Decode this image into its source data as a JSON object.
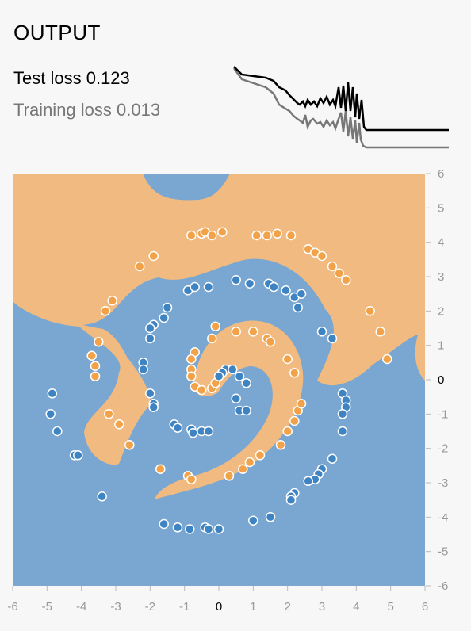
{
  "panel": {
    "title": "OUTPUT"
  },
  "loss": {
    "test_label": "Test loss",
    "test_value": "0.123",
    "training_label": "Training loss",
    "training_value": "0.013"
  },
  "colors": {
    "positive_region": "#f0ba80",
    "negative_region": "#79a7d1",
    "positive_point": "#f2a34a",
    "negative_point": "#3f84c2",
    "point_stroke": "#ffffff",
    "test_curve": "#000000",
    "training_curve": "#777777",
    "tick_text": "#999999"
  },
  "chart_data": {
    "type": "scatter",
    "title": "",
    "xlabel": "",
    "ylabel": "",
    "xlim": [
      -6,
      6
    ],
    "ylim": [
      -6,
      6
    ],
    "x_ticks": [
      "-6",
      "-5",
      "-4",
      "-3",
      "-2",
      "-1",
      "0",
      "1",
      "2",
      "3",
      "4",
      "5",
      "6"
    ],
    "y_ticks": [
      "6",
      "5",
      "4",
      "3",
      "2",
      "1",
      "0",
      "-1",
      "-2",
      "-3",
      "-4",
      "-5",
      "-6"
    ],
    "series": [
      {
        "class": "orange",
        "points": [
          [
            -0.8,
            4.2
          ],
          [
            -0.5,
            4.25
          ],
          [
            -0.4,
            4.3
          ],
          [
            -0.2,
            4.2
          ],
          [
            0.1,
            4.3
          ],
          [
            1.1,
            4.2
          ],
          [
            1.4,
            4.2
          ],
          [
            1.7,
            4.25
          ],
          [
            2.1,
            4.2
          ],
          [
            2.6,
            3.8
          ],
          [
            2.8,
            3.7
          ],
          [
            3.0,
            3.6
          ],
          [
            3.3,
            3.3
          ],
          [
            3.5,
            3.1
          ],
          [
            3.7,
            2.9
          ],
          [
            4.4,
            2.0
          ],
          [
            4.7,
            1.4
          ],
          [
            4.9,
            0.6
          ],
          [
            -1.9,
            3.6
          ],
          [
            -2.3,
            3.3
          ],
          [
            -3.1,
            2.3
          ],
          [
            -3.3,
            2.0
          ],
          [
            -3.5,
            1.1
          ],
          [
            -3.7,
            0.7
          ],
          [
            -3.6,
            0.4
          ],
          [
            -3.6,
            0.1
          ],
          [
            -3.2,
            -1.0
          ],
          [
            -2.9,
            -1.3
          ],
          [
            -2.6,
            -1.9
          ],
          [
            -1.7,
            -2.6
          ],
          [
            -0.9,
            -2.8
          ],
          [
            -0.8,
            -2.9
          ],
          [
            0.3,
            -2.8
          ],
          [
            0.7,
            -2.6
          ],
          [
            0.9,
            -2.4
          ],
          [
            1.2,
            -2.2
          ],
          [
            1.8,
            -1.9
          ],
          [
            2.0,
            -1.5
          ],
          [
            2.2,
            -1.2
          ],
          [
            2.3,
            -0.9
          ],
          [
            2.4,
            -0.7
          ],
          [
            2.0,
            0.6
          ],
          [
            2.2,
            0.2
          ],
          [
            1.4,
            1.2
          ],
          [
            1.5,
            1.1
          ],
          [
            1.0,
            1.4
          ],
          [
            0.5,
            1.4
          ],
          [
            -0.1,
            1.55
          ],
          [
            -0.2,
            1.2
          ],
          [
            -0.7,
            0.8
          ],
          [
            -0.8,
            0.6
          ],
          [
            -0.8,
            0.3
          ],
          [
            -0.8,
            0.1
          ],
          [
            -0.7,
            -0.2
          ],
          [
            -0.5,
            -0.3
          ],
          [
            -0.2,
            -0.25
          ],
          [
            -0.1,
            -0.1
          ]
        ]
      },
      {
        "class": "blue",
        "points": [
          [
            0.5,
            2.9
          ],
          [
            0.9,
            2.8
          ],
          [
            1.45,
            2.8
          ],
          [
            1.6,
            2.7
          ],
          [
            1.95,
            2.6
          ],
          [
            2.2,
            2.4
          ],
          [
            2.4,
            2.5
          ],
          [
            2.3,
            2.1
          ],
          [
            -0.9,
            2.6
          ],
          [
            -0.7,
            2.7
          ],
          [
            -0.3,
            2.7
          ],
          [
            -1.5,
            2.1
          ],
          [
            -1.6,
            1.8
          ],
          [
            -1.9,
            1.6
          ],
          [
            -2.0,
            1.5
          ],
          [
            -2.0,
            1.2
          ],
          [
            -2.2,
            0.5
          ],
          [
            -2.2,
            0.3
          ],
          [
            -2.0,
            -0.4
          ],
          [
            -1.9,
            -0.7
          ],
          [
            -1.9,
            -0.8
          ],
          [
            -1.3,
            -1.3
          ],
          [
            -1.2,
            -1.4
          ],
          [
            -0.8,
            -1.45
          ],
          [
            -0.75,
            -1.55
          ],
          [
            -0.5,
            -1.5
          ],
          [
            -0.3,
            -1.5
          ],
          [
            3.0,
            1.4
          ],
          [
            3.3,
            1.2
          ],
          [
            3.6,
            -0.4
          ],
          [
            3.7,
            -0.6
          ],
          [
            3.7,
            -0.8
          ],
          [
            3.6,
            -1.0
          ],
          [
            3.6,
            -1.5
          ],
          [
            3.3,
            -2.3
          ],
          [
            3.0,
            -2.6
          ],
          [
            2.9,
            -2.75
          ],
          [
            2.8,
            -2.9
          ],
          [
            2.6,
            -2.95
          ],
          [
            2.2,
            -3.3
          ],
          [
            2.1,
            -3.4
          ],
          [
            2.1,
            -3.5
          ],
          [
            1.5,
            -4.0
          ],
          [
            1.0,
            -4.1
          ],
          [
            -1.6,
            -4.2
          ],
          [
            -1.2,
            -4.3
          ],
          [
            -0.85,
            -4.35
          ],
          [
            -0.4,
            -4.3
          ],
          [
            -0.3,
            -4.35
          ],
          [
            0.0,
            -4.35
          ],
          [
            -3.4,
            -3.4
          ],
          [
            -4.2,
            -2.2
          ],
          [
            -4.1,
            -2.2
          ],
          [
            -4.7,
            -1.5
          ],
          [
            -4.9,
            -1.0
          ],
          [
            -4.85,
            -0.4
          ],
          [
            0.2,
            0.3
          ],
          [
            0.4,
            0.3
          ],
          [
            0.1,
            0.2
          ],
          [
            0.0,
            0.1
          ],
          [
            0.6,
            0.1
          ],
          [
            0.8,
            -0.1
          ],
          [
            0.5,
            -0.55
          ],
          [
            0.6,
            -0.9
          ],
          [
            0.8,
            -0.9
          ]
        ]
      }
    ]
  }
}
